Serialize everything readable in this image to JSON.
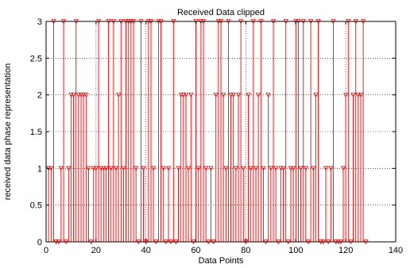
{
  "chart_data": {
    "type": "stem",
    "title": "Received Data clipped",
    "xlabel": "Data Points",
    "ylabel": "received data phase representation",
    "xlim": [
      0,
      140
    ],
    "ylim": [
      0,
      3
    ],
    "xticks": [
      0,
      20,
      40,
      60,
      80,
      100,
      120,
      140
    ],
    "yticks": [
      0,
      0.5,
      1,
      1.5,
      2,
      2.5,
      3
    ],
    "xtick_labels": [
      "0",
      "20",
      "40",
      "60",
      "80",
      "100",
      "120",
      "140"
    ],
    "ytick_labels": [
      "0",
      "0.5",
      "1",
      "1.5",
      "2",
      "2.5",
      "3"
    ],
    "grid": true,
    "series": [
      {
        "color": "#ff0000",
        "marker": "triangle-down",
        "x": [
          1,
          2,
          3,
          4,
          5,
          6,
          7,
          8,
          9,
          10,
          11,
          12,
          13,
          14,
          15,
          16,
          17,
          18,
          19,
          20,
          21,
          22,
          23,
          24,
          25,
          26,
          27,
          28,
          29,
          30,
          31,
          32,
          33,
          34,
          35,
          36,
          37,
          38,
          39,
          40,
          41,
          42,
          43,
          44,
          45,
          46,
          47,
          48,
          49,
          50,
          51,
          52,
          53,
          54,
          55,
          56,
          57,
          58,
          59,
          60,
          61,
          62,
          63,
          64,
          65,
          66,
          67,
          68,
          69,
          70,
          71,
          72,
          73,
          74,
          75,
          76,
          77,
          78,
          79,
          80,
          81,
          82,
          83,
          84,
          85,
          86,
          87,
          88,
          89,
          90,
          91,
          92,
          93,
          94,
          95,
          96,
          97,
          98,
          99,
          100,
          101,
          102,
          103,
          104,
          105,
          106,
          107,
          108,
          109,
          110,
          111,
          112,
          113,
          114,
          115,
          116,
          117,
          118,
          119,
          120,
          121,
          122,
          123,
          124,
          125,
          126,
          127,
          128
        ],
        "y": [
          1,
          1,
          3,
          0,
          0,
          1,
          3,
          0,
          1,
          2,
          2,
          3,
          2,
          2,
          2,
          2,
          1,
          0,
          1,
          1,
          3,
          1,
          1,
          1,
          3,
          1,
          3,
          1,
          2,
          3,
          1,
          3,
          3,
          3,
          3,
          1,
          0,
          3,
          1,
          0,
          3,
          3,
          1,
          0,
          3,
          3,
          1,
          0,
          1,
          0,
          3,
          0,
          1,
          2,
          2,
          2,
          1,
          2,
          0,
          3,
          1,
          3,
          3,
          1,
          0,
          1,
          0,
          2,
          3,
          3,
          2,
          1,
          3,
          2,
          2,
          1,
          2,
          3,
          1,
          0,
          2,
          1,
          3,
          1,
          2,
          3,
          1,
          0,
          2,
          1,
          3,
          1,
          0,
          1,
          1,
          3,
          0,
          1,
          1,
          3,
          3,
          1,
          3,
          1,
          0,
          3,
          1,
          2,
          3,
          0,
          0,
          1,
          0,
          1,
          3,
          0,
          0,
          0,
          1,
          2,
          3,
          0,
          2,
          3,
          2,
          2,
          3,
          0
        ]
      }
    ]
  }
}
